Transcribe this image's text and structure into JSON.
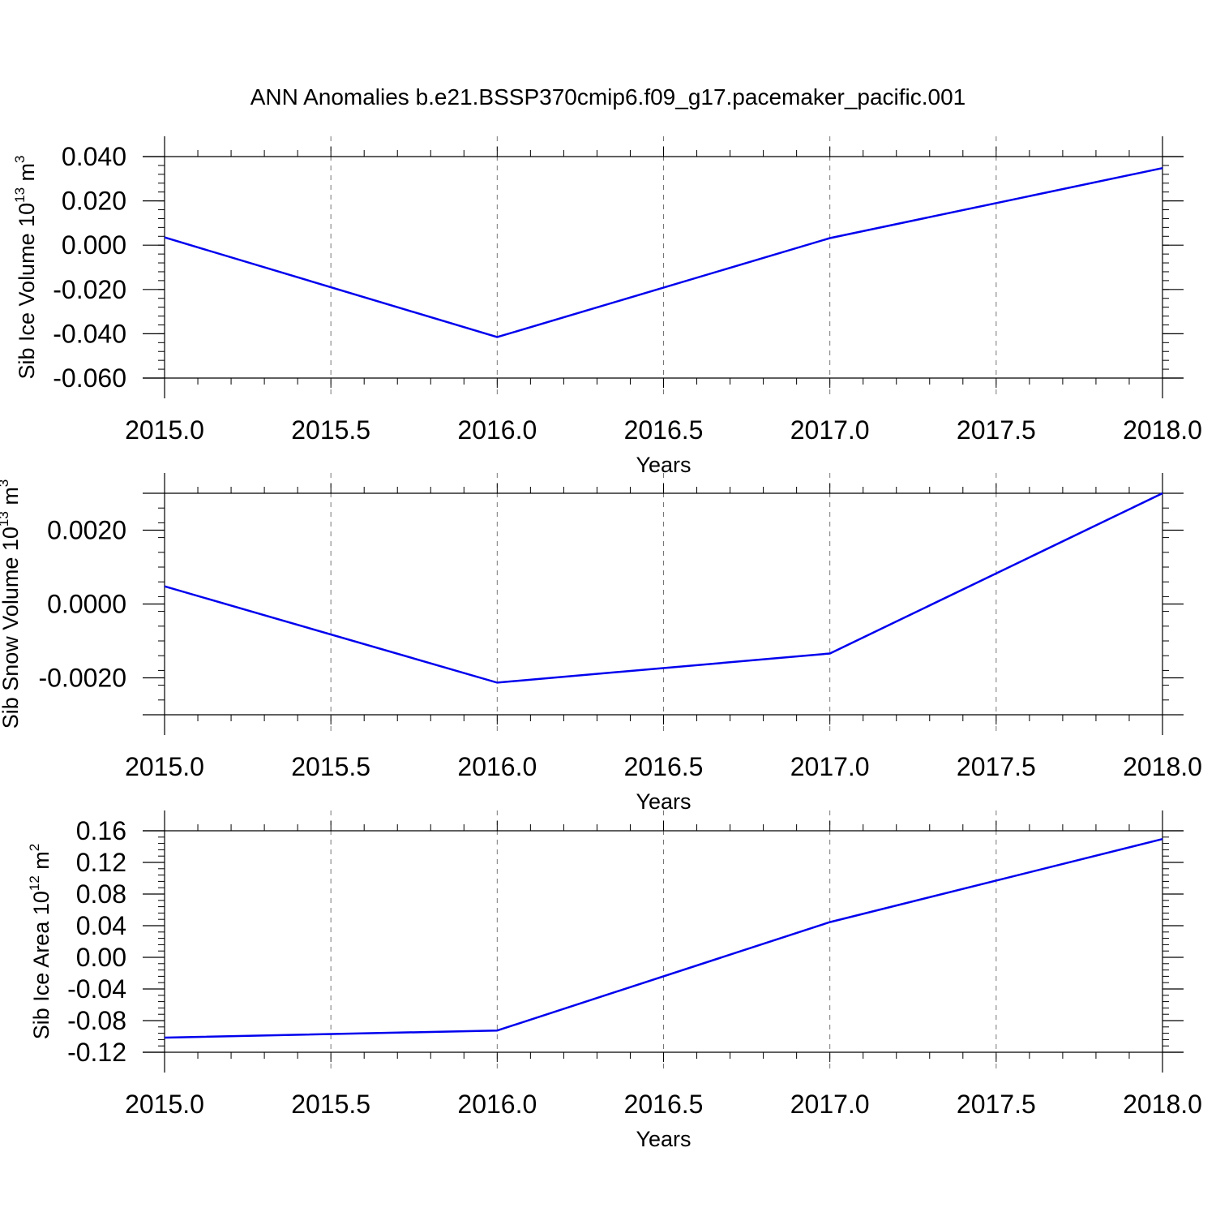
{
  "figure": {
    "title": "ANN Anomalies b.e21.BSSP370cmip6.f09_g17.pacemaker_pacific.001"
  },
  "chart_data": [
    {
      "type": "line",
      "title": "",
      "xlabel": "Years",
      "ylabel": {
        "main": "Sib Ice Volume 10",
        "exponent": "13",
        "unit": " m",
        "unit_exponent": "3"
      },
      "xlim": [
        2015.0,
        2018.0
      ],
      "ylim": [
        -0.06,
        0.04
      ],
      "xticks": [
        "2015.0",
        "2015.5",
        "2016.0",
        "2016.5",
        "2017.0",
        "2017.5",
        "2018.0"
      ],
      "yticks": [
        {
          "value": -0.06,
          "label": "-0.060"
        },
        {
          "value": -0.04,
          "label": "-0.040"
        },
        {
          "value": -0.02,
          "label": "-0.020"
        },
        {
          "value": 0.0,
          "label": "0.000"
        },
        {
          "value": 0.02,
          "label": "0.020"
        },
        {
          "value": 0.04,
          "label": "0.040"
        }
      ],
      "grid": "vertical-dashed",
      "color": "#0000ee",
      "series": [
        {
          "x": [
            2015,
            2016,
            2017,
            2018
          ],
          "y": [
            0.0035,
            -0.0415,
            0.0032,
            0.0348
          ]
        }
      ]
    },
    {
      "type": "line",
      "title": "",
      "xlabel": "Years",
      "ylabel": {
        "main": "Sib Snow Volume 10",
        "exponent": "13",
        "unit": " m",
        "unit_exponent": "3"
      },
      "xlim": [
        2015.0,
        2018.0
      ],
      "ylim": [
        -0.003,
        0.003
      ],
      "xticks": [
        "2015.0",
        "2015.5",
        "2016.0",
        "2016.5",
        "2017.0",
        "2017.5",
        "2018.0"
      ],
      "yticks": [
        {
          "value": -0.002,
          "label": "-0.0020"
        },
        {
          "value": 0.0,
          "label": "0.0000"
        },
        {
          "value": 0.002,
          "label": "0.0020"
        }
      ],
      "grid": "vertical-dashed",
      "color": "#0000ee",
      "series": [
        {
          "x": [
            2015,
            2016,
            2017,
            2018
          ],
          "y": [
            0.00048,
            -0.00213,
            -0.00134,
            0.003
          ]
        }
      ]
    },
    {
      "type": "line",
      "title": "",
      "xlabel": "Years",
      "ylabel": {
        "main": "Sib Ice Area 10",
        "exponent": "12",
        "unit": " m",
        "unit_exponent": "2"
      },
      "xlim": [
        2015.0,
        2018.0
      ],
      "ylim": [
        -0.12,
        0.16
      ],
      "xticks": [
        "2015.0",
        "2015.5",
        "2016.0",
        "2016.5",
        "2017.0",
        "2017.5",
        "2018.0"
      ],
      "yticks": [
        {
          "value": -0.12,
          "label": "-0.12"
        },
        {
          "value": -0.08,
          "label": "-0.08"
        },
        {
          "value": -0.04,
          "label": "-0.04"
        },
        {
          "value": 0.0,
          "label": "0.00"
        },
        {
          "value": 0.04,
          "label": "0.04"
        },
        {
          "value": 0.08,
          "label": "0.08"
        },
        {
          "value": 0.12,
          "label": "0.12"
        },
        {
          "value": 0.16,
          "label": "0.16"
        }
      ],
      "grid": "vertical-dashed",
      "color": "#0000ee",
      "series": [
        {
          "x": [
            2015,
            2016,
            2017,
            2018
          ],
          "y": [
            -0.1015,
            -0.0925,
            0.0445,
            0.1495
          ]
        }
      ]
    }
  ]
}
